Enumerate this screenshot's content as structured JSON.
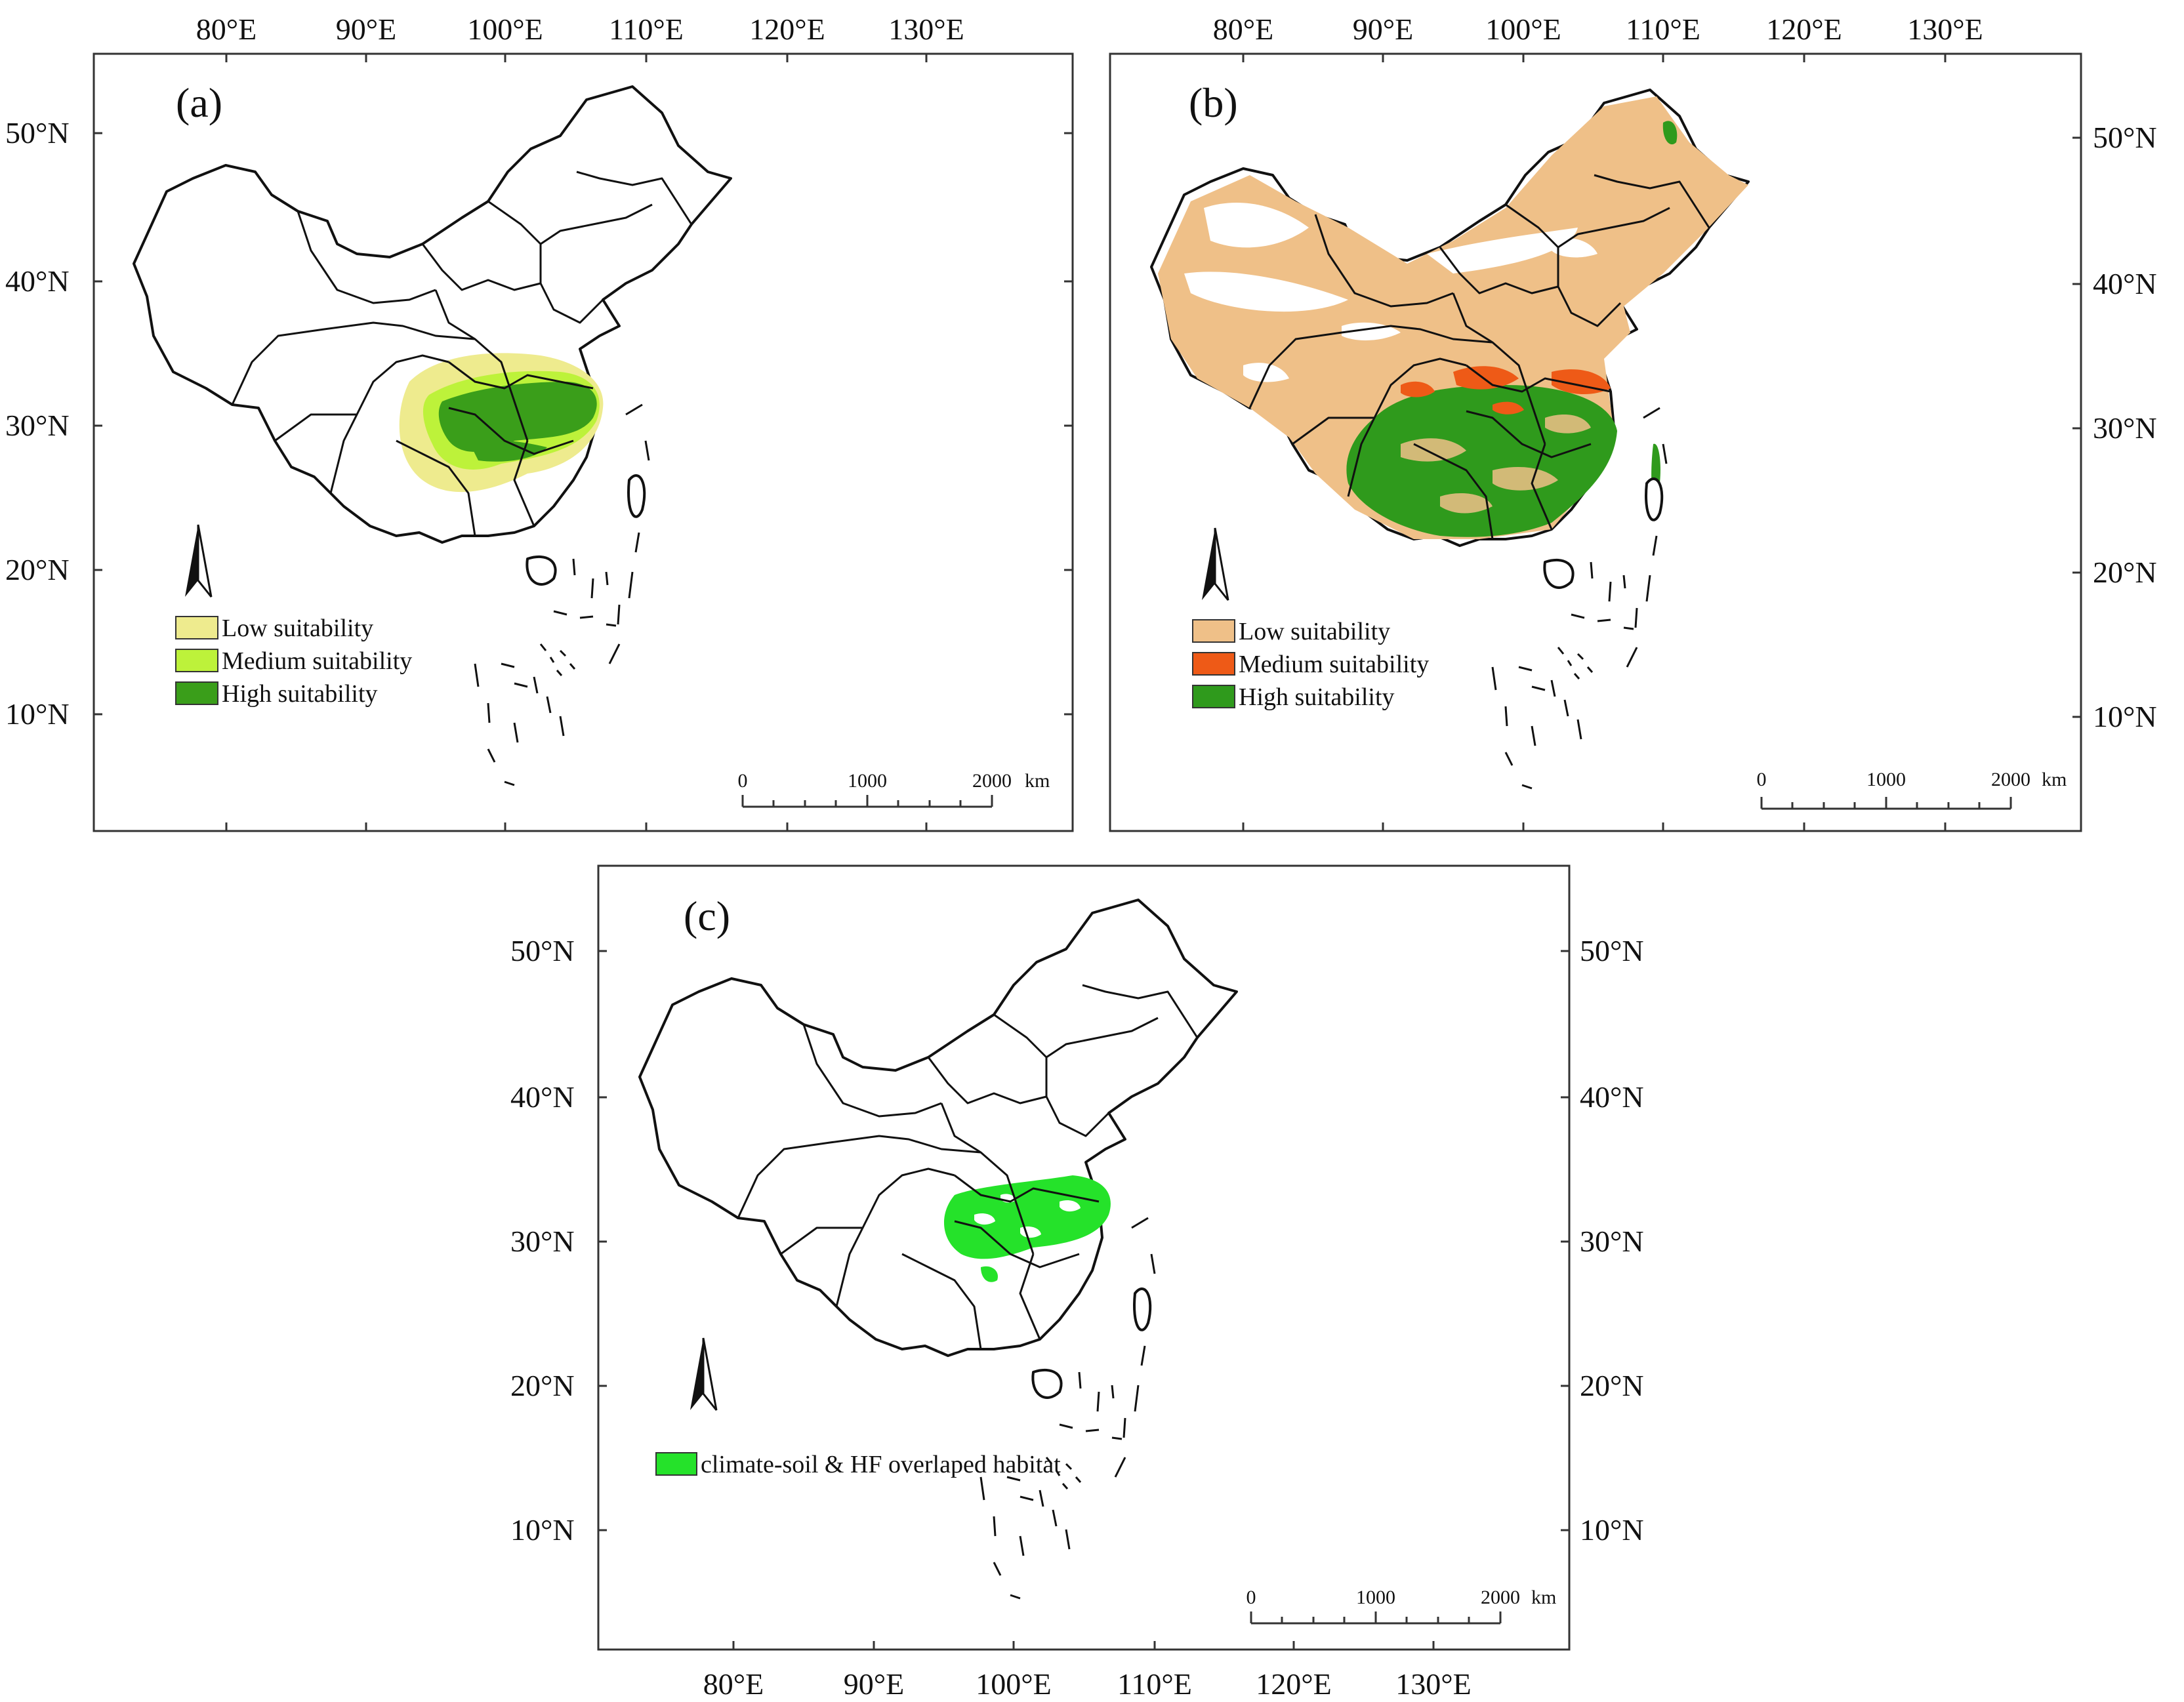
{
  "figure": {
    "panels": [
      {
        "id": "a",
        "label": "(a)",
        "lon_ticks": [
          "80°E",
          "90°E",
          "100°E",
          "110°E",
          "120°E",
          "130°E"
        ],
        "lat_ticks": [
          "50°N",
          "40°N",
          "30°N",
          "20°N",
          "10°N"
        ],
        "legend": [
          {
            "label": "Low suitability",
            "color": "#eeeb8e"
          },
          {
            "label": "Medium suitability",
            "color": "#bdf23a"
          },
          {
            "label": "High suitability",
            "color": "#3a9e1a"
          }
        ],
        "scalebar": [
          "0",
          "1000",
          "2000",
          "km"
        ]
      },
      {
        "id": "b",
        "label": "(b)",
        "lon_ticks": [
          "80°E",
          "90°E",
          "100°E",
          "110°E",
          "120°E",
          "130°E"
        ],
        "lat_ticks": [
          "50°N",
          "40°N",
          "30°N",
          "20°N",
          "10°N"
        ],
        "legend": [
          {
            "label": "Low suitability",
            "color": "#efc088"
          },
          {
            "label": "Medium suitability",
            "color": "#ee5a17"
          },
          {
            "label": "High suitability",
            "color": "#2f9a1c"
          }
        ],
        "scalebar": [
          "0",
          "1000",
          "2000",
          "km"
        ]
      },
      {
        "id": "c",
        "label": "(c)",
        "lon_ticks": [
          "80°E",
          "90°E",
          "100°E",
          "110°E",
          "120°E",
          "130°E"
        ],
        "lat_ticks": [
          "50°N",
          "40°N",
          "30°N",
          "20°N",
          "10°N"
        ],
        "legend": [
          {
            "label": "climate-soil & HF overlaped habitat",
            "color": "#25e22a"
          }
        ],
        "scalebar": [
          "0",
          "1000",
          "2000",
          "km"
        ]
      }
    ]
  }
}
